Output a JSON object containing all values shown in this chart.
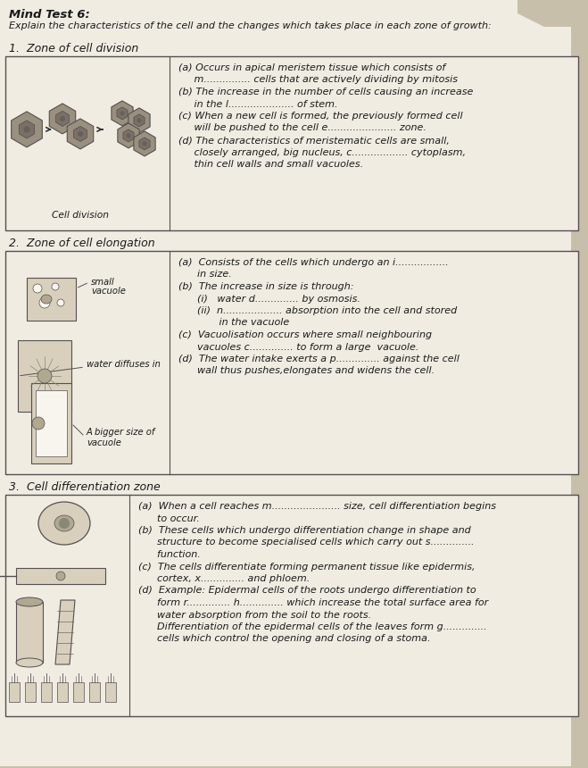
{
  "title_bold": "Mind Test 6:",
  "title_normal": "Explain the characteristics of the cell and the changes which takes place in each zone of growth:",
  "bg_color": "#c8bfaa",
  "paper_color": "#f0ece2",
  "box_color": "#ede9de",
  "section1_header": "1.  Zone of cell division",
  "section2_header": "2.  Zone of cell elongation",
  "section3_header": "3.  Cell differentiation zone",
  "section1_image_label": "Cell division",
  "section1_text_a": "(a) Occurs in apical meristem tissue which consists of",
  "section1_text_a2": "     m............... cells that are actively dividing by mitosis",
  "section1_text_b": "(b) The increase in the number of cells causing an increase",
  "section1_text_b2": "     in the l..................... of stem.",
  "section1_text_c": "(c) When a new cell is formed, the previously formed cell",
  "section1_text_c2": "     will be pushed to the cell e...................... zone.",
  "section1_text_d": "(d) The characteristics of meristematic cells are small,",
  "section1_text_d2": "     closely arranged, big nucleus, c.................. cytoplasm,",
  "section1_text_d3": "     thin cell walls and small vacuoles.",
  "s2_label0": "small",
  "s2_label0b": "vacuole",
  "s2_label1": "water diffuses in",
  "s2_label2": "A bigger size of",
  "s2_label2b": "vacuole",
  "section2_text_a": "(a)  Consists of the cells which undergo an i.................",
  "section2_text_a2": "      in size.",
  "section2_text_b": "(b)  The increase in size is through:",
  "section2_text_bi": "      (i)   water d.............. by osmosis.",
  "section2_text_bii": "      (ii)  n................... absorption into the cell and stored",
  "section2_text_bii2": "             in the vacuole",
  "section2_text_c": "(c)  Vacuolisation occurs where small neighbouring",
  "section2_text_c2": "      vacuoles c.............. to form a large  vacuole.",
  "section2_text_d": "(d)  The water intake exerts a p.............. against the cell",
  "section2_text_d2": "      wall thus pushes,elongates and widens the cell.",
  "section3_text_a": "(a)  When a cell reaches m...................... size, cell differentiation begins",
  "section3_text_a2": "      to occur.",
  "section3_text_b": "(b)  These cells which undergo differentiation change in shape and",
  "section3_text_b2": "      structure to become specialised cells which carry out s..............",
  "section3_text_b3": "      function.",
  "section3_text_c": "(c)  The cells differentiate forming permanent tissue like epidermis,",
  "section3_text_c2": "      cortex, x.............. and phloem.",
  "section3_text_d": "(d)  Example: Epidermal cells of the roots undergo differentiation to",
  "section3_text_d2": "      form r.............. h.............. which increase the total surface area for",
  "section3_text_d3": "      water absorption from the soil to the roots.",
  "section3_text_d4": "      Differentiation of the epidermal cells of the leaves form g..............",
  "section3_text_d5": "      cells which control the opening and closing of a stoma.",
  "hex_color": "#9a9080",
  "hex_inner": "#7a7068",
  "cell_bg": "#d8d0bc",
  "cell_dark": "#b0a890",
  "white_color": "#f8f5ee",
  "text_color": "#1a1a1a",
  "line_color": "#555050",
  "fs_title": 9.5,
  "fs_section": 9.0,
  "fs_text": 8.0,
  "fs_label": 7.2
}
